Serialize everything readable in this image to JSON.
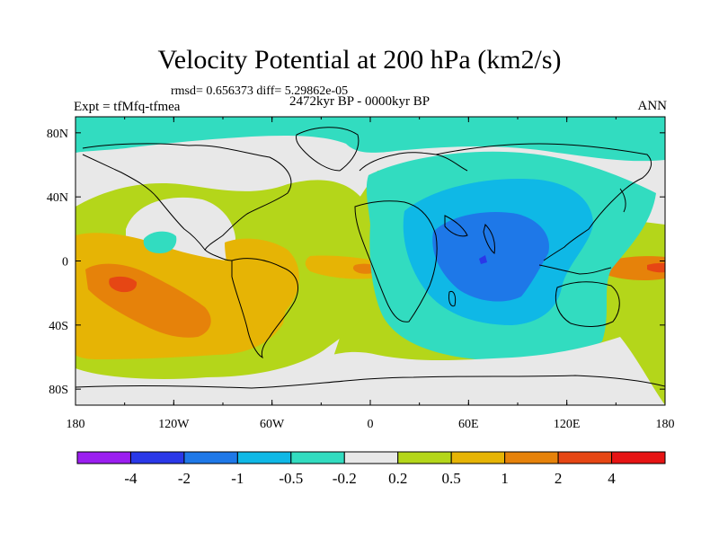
{
  "title": "Velocity Potential at 200 hPa (km2/s)",
  "stats": "rmsd= 0.656373 diff= 5.29862e-05",
  "experiment": "Expt = tfMfq-tfmea",
  "period": "2472kyr BP - 0000kyr BP",
  "season": "ANN",
  "chart_data": {
    "type": "heatmap",
    "title": "Velocity Potential at 200 hPa (km2/s)",
    "x_ticks": [
      "180",
      "120W",
      "60W",
      "0",
      "60E",
      "120E",
      "180"
    ],
    "y_ticks": [
      "80N",
      "40N",
      "0",
      "40S",
      "80S"
    ],
    "xlim": [
      -180,
      180
    ],
    "ylim": [
      -90,
      90
    ],
    "colorbar": {
      "labels": [
        "-4",
        "-2",
        "-1",
        "-0.5",
        "-0.2",
        "0.2",
        "0.5",
        "1",
        "2",
        "4"
      ],
      "colors": [
        "#9b1ef0",
        "#2a38e8",
        "#1e78e8",
        "#0fb8e6",
        "#32dcc0",
        "#e8e8e8",
        "#b4d61a",
        "#e6b405",
        "#e6820a",
        "#e64614",
        "#e61414"
      ]
    }
  }
}
